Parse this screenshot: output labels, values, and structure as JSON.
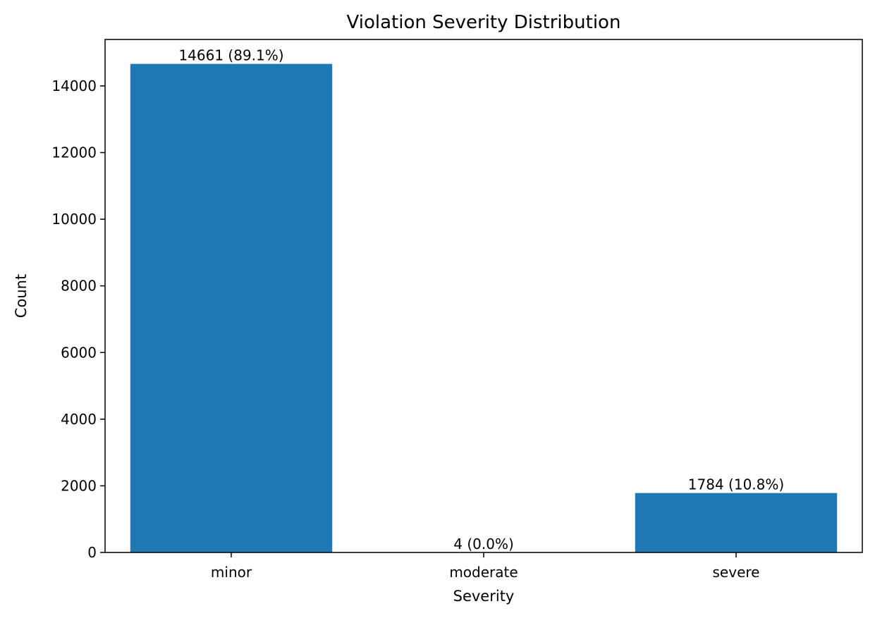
{
  "chart_data": {
    "type": "bar",
    "title": "Violation Severity Distribution",
    "xlabel": "Severity",
    "ylabel": "Count",
    "categories": [
      "minor",
      "moderate",
      "severe"
    ],
    "values": [
      14661,
      4,
      1784
    ],
    "data_labels": [
      "14661 (89.1%)",
      "4 (0.0%)",
      "1784 (10.8%)"
    ],
    "yticks": [
      0,
      2000,
      4000,
      6000,
      8000,
      10000,
      12000,
      14000
    ],
    "ylim": [
      0,
      15394
    ],
    "grid": false,
    "bar_color": "#1f77b4"
  }
}
